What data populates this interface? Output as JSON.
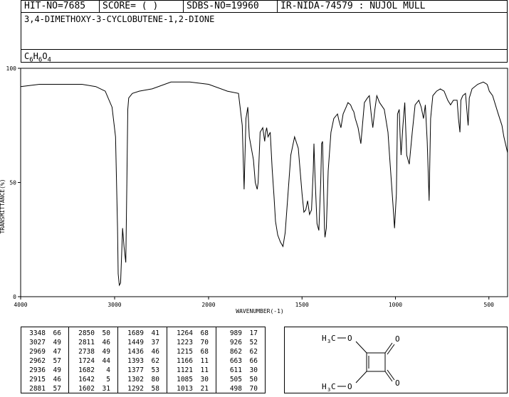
{
  "header": {
    "hit_no": "HIT-NO=7685",
    "score": "SCORE=  (   )",
    "sdbs_no": "SDBS-NO=19960",
    "ir_id": "IR-NIDA-74579 : NUJOL MULL"
  },
  "compound_name": "3,4-DIMETHOXY-3-CYCLOBUTENE-1,2-DIONE",
  "formula": {
    "c": "C",
    "c_n": "6",
    "h": "H",
    "h_n": "6",
    "o": "O",
    "o_n": "4"
  },
  "chart_data": {
    "type": "line",
    "xlabel": "WAVENUMBER(-1)",
    "ylabel": "TRANSMITTANCE(%)",
    "x_ticks": [
      "4000",
      "3000",
      "2000",
      "1500",
      "1000",
      "500"
    ],
    "y_ticks": [
      "100",
      "50",
      "0"
    ],
    "xlim": [
      4000,
      400
    ],
    "ylim": [
      0,
      100
    ],
    "x_scale": "piecewise linear (4000-2000 compressed, 2000-400 expanded)",
    "series": [
      {
        "points": [
          [
            4000,
            92
          ],
          [
            3800,
            93
          ],
          [
            3500,
            93
          ],
          [
            3348,
            93
          ],
          [
            3200,
            92
          ],
          [
            3100,
            90
          ],
          [
            3027,
            83
          ],
          [
            2990,
            70
          ],
          [
            2969,
            30
          ],
          [
            2962,
            10
          ],
          [
            2950,
            5
          ],
          [
            2936,
            6
          ],
          [
            2915,
            30
          ],
          [
            2900,
            22
          ],
          [
            2881,
            15
          ],
          [
            2870,
            50
          ],
          [
            2860,
            82
          ],
          [
            2850,
            87
          ],
          [
            2811,
            89
          ],
          [
            2738,
            90
          ],
          [
            2600,
            91
          ],
          [
            2400,
            94
          ],
          [
            2200,
            94
          ],
          [
            2000,
            93
          ],
          [
            1900,
            90
          ],
          [
            1840,
            89
          ],
          [
            1820,
            75
          ],
          [
            1810,
            47
          ],
          [
            1800,
            78
          ],
          [
            1790,
            83
          ],
          [
            1782,
            70
          ],
          [
            1760,
            60
          ],
          [
            1750,
            50
          ],
          [
            1740,
            47
          ],
          [
            1735,
            50
          ],
          [
            1724,
            72
          ],
          [
            1710,
            74
          ],
          [
            1700,
            68
          ],
          [
            1695,
            72
          ],
          [
            1689,
            74
          ],
          [
            1682,
            70
          ],
          [
            1670,
            72
          ],
          [
            1660,
            56
          ],
          [
            1650,
            44
          ],
          [
            1642,
            33
          ],
          [
            1630,
            27
          ],
          [
            1616,
            24
          ],
          [
            1602,
            22
          ],
          [
            1590,
            28
          ],
          [
            1560,
            62
          ],
          [
            1540,
            70
          ],
          [
            1520,
            65
          ],
          [
            1500,
            45
          ],
          [
            1490,
            37
          ],
          [
            1480,
            38
          ],
          [
            1470,
            42
          ],
          [
            1460,
            36
          ],
          [
            1449,
            38
          ],
          [
            1440,
            55
          ],
          [
            1436,
            67
          ],
          [
            1430,
            52
          ],
          [
            1420,
            32
          ],
          [
            1410,
            29
          ],
          [
            1400,
            50
          ],
          [
            1395,
            67
          ],
          [
            1390,
            68
          ],
          [
            1380,
            30
          ],
          [
            1377,
            26
          ],
          [
            1370,
            30
          ],
          [
            1360,
            55
          ],
          [
            1345,
            72
          ],
          [
            1330,
            78
          ],
          [
            1310,
            80
          ],
          [
            1302,
            77
          ],
          [
            1292,
            74
          ],
          [
            1280,
            80
          ],
          [
            1264,
            83
          ],
          [
            1254,
            85
          ],
          [
            1240,
            84
          ],
          [
            1230,
            82
          ],
          [
            1223,
            81
          ],
          [
            1215,
            78
          ],
          [
            1200,
            74
          ],
          [
            1185,
            67
          ],
          [
            1166,
            85
          ],
          [
            1150,
            87
          ],
          [
            1140,
            88
          ],
          [
            1130,
            80
          ],
          [
            1121,
            74
          ],
          [
            1110,
            82
          ],
          [
            1100,
            88
          ],
          [
            1085,
            85
          ],
          [
            1060,
            82
          ],
          [
            1040,
            72
          ],
          [
            1030,
            60
          ],
          [
            1013,
            40
          ],
          [
            1005,
            30
          ],
          [
            995,
            45
          ],
          [
            989,
            80
          ],
          [
            980,
            82
          ],
          [
            975,
            70
          ],
          [
            970,
            62
          ],
          [
            960,
            75
          ],
          [
            950,
            85
          ],
          [
            940,
            62
          ],
          [
            926,
            58
          ],
          [
            910,
            72
          ],
          [
            895,
            84
          ],
          [
            875,
            86
          ],
          [
            862,
            83
          ],
          [
            850,
            78
          ],
          [
            840,
            84
          ],
          [
            830,
            68
          ],
          [
            820,
            42
          ],
          [
            812,
            78
          ],
          [
            800,
            88
          ],
          [
            780,
            90
          ],
          [
            760,
            91
          ],
          [
            740,
            90
          ],
          [
            720,
            86
          ],
          [
            705,
            84
          ],
          [
            690,
            86
          ],
          [
            670,
            86
          ],
          [
            663,
            78
          ],
          [
            655,
            72
          ],
          [
            650,
            86
          ],
          [
            640,
            88
          ],
          [
            625,
            89
          ],
          [
            611,
            75
          ],
          [
            605,
            87
          ],
          [
            590,
            91
          ],
          [
            560,
            93
          ],
          [
            530,
            94
          ],
          [
            510,
            93
          ],
          [
            505,
            92
          ],
          [
            498,
            90
          ],
          [
            480,
            88
          ],
          [
            450,
            80
          ],
          [
            430,
            75
          ],
          [
            420,
            70
          ],
          [
            400,
            63
          ]
        ]
      }
    ]
  },
  "peak_table": [
    [
      [
        "3348",
        "66"
      ],
      [
        "3027",
        "49"
      ],
      [
        "2969",
        "47"
      ],
      [
        "2962",
        "57"
      ],
      [
        "2936",
        "49"
      ],
      [
        "2915",
        "46"
      ],
      [
        "2881",
        "57"
      ]
    ],
    [
      [
        "2850",
        "50"
      ],
      [
        "2811",
        "46"
      ],
      [
        "2738",
        "49"
      ],
      [
        "1724",
        "44"
      ],
      [
        "1682",
        "4"
      ],
      [
        "1642",
        "5"
      ],
      [
        "1602",
        "31"
      ]
    ],
    [
      [
        "1689",
        "41"
      ],
      [
        "1449",
        "37"
      ],
      [
        "1436",
        "46"
      ],
      [
        "1393",
        "62"
      ],
      [
        "1377",
        "53"
      ],
      [
        "1302",
        "80"
      ],
      [
        "1292",
        "58"
      ]
    ],
    [
      [
        "1264",
        "68"
      ],
      [
        "1223",
        "70"
      ],
      [
        "1215",
        "68"
      ],
      [
        "1166",
        "11"
      ],
      [
        "1121",
        "11"
      ],
      [
        "1085",
        "30"
      ],
      [
        "1013",
        "21"
      ]
    ],
    [
      [
        "989",
        "17"
      ],
      [
        "926",
        "52"
      ],
      [
        "862",
        "62"
      ],
      [
        "663",
        "66"
      ],
      [
        "611",
        "30"
      ],
      [
        "505",
        "50"
      ],
      [
        "498",
        "70"
      ]
    ]
  ],
  "structure": {
    "o_top": "O",
    "o_bottom": "O",
    "carbonyl_top": "O",
    "carbonyl_bottom": "O",
    "methyl_top_h": "H",
    "methyl_top_3": "3",
    "methyl_top_c": "C",
    "methyl_bottom_h": "H",
    "methyl_bottom_3": "3",
    "methyl_bottom_c": "C"
  }
}
